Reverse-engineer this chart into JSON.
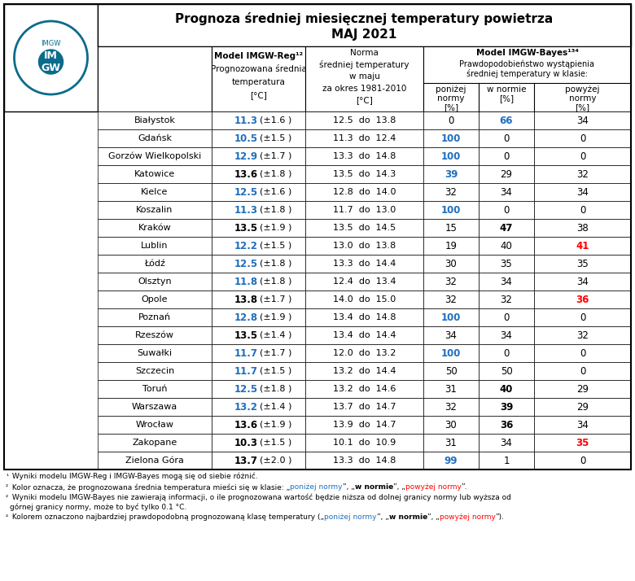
{
  "title_line1": "Prognoza średniej miesięcznej temperatury powietrza",
  "title_line2": "MAJ 2021",
  "col_headers": {
    "col1": [
      "Model IMGW-Reg¹²",
      "Prognozowana średnia",
      "temperatura",
      "[°C]"
    ],
    "col2": [
      "Norma",
      "średniej temperatury",
      "w maju",
      "za okres 1981-2010",
      "[°C]"
    ],
    "col3_main": "Model IMGW-Bayes¹³⁴",
    "col3_sub": "Prawdopodobieństwo wystąpienia średniej temperatury w klasie:",
    "col3a": [
      "poniżej",
      "normy",
      "[%]"
    ],
    "col3b": [
      "w normie",
      "[%]"
    ],
    "col3c": [
      "powyżej",
      "normy",
      "[%]"
    ]
  },
  "rows": [
    {
      "city": "Białystok",
      "temp": "11.3",
      "pm": "±1.6",
      "norm_low": "12.5",
      "norm_high": "13.8",
      "p_below": "0",
      "p_norm": "66",
      "p_above": "34",
      "temp_color": "blue",
      "below_color": "black",
      "norm_color": "blue_bold",
      "above_color": "black"
    },
    {
      "city": "Gdańsk",
      "temp": "10.5",
      "pm": "±1.5",
      "norm_low": "11.3",
      "norm_high": "12.4",
      "p_below": "100",
      "p_norm": "0",
      "p_above": "0",
      "temp_color": "blue",
      "below_color": "blue",
      "norm_color": "black",
      "above_color": "black"
    },
    {
      "city": "Gorzów Wielkopolski",
      "temp": "12.9",
      "pm": "±1.7",
      "norm_low": "13.3",
      "norm_high": "14.8",
      "p_below": "100",
      "p_norm": "0",
      "p_above": "0",
      "temp_color": "blue",
      "below_color": "blue",
      "norm_color": "black",
      "above_color": "black"
    },
    {
      "city": "Katowice",
      "temp": "13.6",
      "pm": "±1.8",
      "norm_low": "13.5",
      "norm_high": "14.3",
      "p_below": "39",
      "p_norm": "29",
      "p_above": "32",
      "temp_color": "black",
      "below_color": "blue",
      "norm_color": "black",
      "above_color": "black"
    },
    {
      "city": "Kielce",
      "temp": "12.5",
      "pm": "±1.6",
      "norm_low": "12.8",
      "norm_high": "14.0",
      "p_below": "32",
      "p_norm": "34",
      "p_above": "34",
      "temp_color": "blue",
      "below_color": "black",
      "norm_color": "black",
      "above_color": "black"
    },
    {
      "city": "Koszalin",
      "temp": "11.3",
      "pm": "±1.8",
      "norm_low": "11.7",
      "norm_high": "13.0",
      "p_below": "100",
      "p_norm": "0",
      "p_above": "0",
      "temp_color": "blue",
      "below_color": "blue",
      "norm_color": "black",
      "above_color": "black"
    },
    {
      "city": "Kraków",
      "temp": "13.5",
      "pm": "±1.9",
      "norm_low": "13.5",
      "norm_high": "14.5",
      "p_below": "15",
      "p_norm": "47",
      "p_above": "38",
      "temp_color": "black",
      "below_color": "black",
      "norm_color": "black_bold",
      "above_color": "black"
    },
    {
      "city": "Lublin",
      "temp": "12.2",
      "pm": "±1.5",
      "norm_low": "13.0",
      "norm_high": "13.8",
      "p_below": "19",
      "p_norm": "40",
      "p_above": "41",
      "temp_color": "blue",
      "below_color": "black",
      "norm_color": "black",
      "above_color": "red"
    },
    {
      "city": "Łódź",
      "temp": "12.5",
      "pm": "±1.8",
      "norm_low": "13.3",
      "norm_high": "14.4",
      "p_below": "30",
      "p_norm": "35",
      "p_above": "35",
      "temp_color": "blue",
      "below_color": "black",
      "norm_color": "black",
      "above_color": "black"
    },
    {
      "city": "Olsztyn",
      "temp": "11.8",
      "pm": "±1.8",
      "norm_low": "12.4",
      "norm_high": "13.4",
      "p_below": "32",
      "p_norm": "34",
      "p_above": "34",
      "temp_color": "blue",
      "below_color": "black",
      "norm_color": "black",
      "above_color": "black"
    },
    {
      "city": "Opole",
      "temp": "13.8",
      "pm": "±1.7",
      "norm_low": "14.0",
      "norm_high": "15.0",
      "p_below": "32",
      "p_norm": "32",
      "p_above": "36",
      "temp_color": "black",
      "below_color": "black",
      "norm_color": "black",
      "above_color": "red"
    },
    {
      "city": "Poznań",
      "temp": "12.8",
      "pm": "±1.9",
      "norm_low": "13.4",
      "norm_high": "14.8",
      "p_below": "100",
      "p_norm": "0",
      "p_above": "0",
      "temp_color": "blue",
      "below_color": "blue",
      "norm_color": "black",
      "above_color": "black"
    },
    {
      "city": "Rzeszów",
      "temp": "13.5",
      "pm": "±1.4",
      "norm_low": "13.4",
      "norm_high": "14.4",
      "p_below": "34",
      "p_norm": "34",
      "p_above": "32",
      "temp_color": "black",
      "below_color": "black",
      "norm_color": "black",
      "above_color": "black"
    },
    {
      "city": "Suwałki",
      "temp": "11.7",
      "pm": "±1.7",
      "norm_low": "12.0",
      "norm_high": "13.2",
      "p_below": "100",
      "p_norm": "0",
      "p_above": "0",
      "temp_color": "blue",
      "below_color": "blue",
      "norm_color": "black",
      "above_color": "black"
    },
    {
      "city": "Szczecin",
      "temp": "11.7",
      "pm": "±1.5",
      "norm_low": "13.2",
      "norm_high": "14.4",
      "p_below": "50",
      "p_norm": "50",
      "p_above": "0",
      "temp_color": "blue",
      "below_color": "black",
      "norm_color": "black",
      "above_color": "black"
    },
    {
      "city": "Toruń",
      "temp": "12.5",
      "pm": "±1.8",
      "norm_low": "13.2",
      "norm_high": "14.6",
      "p_below": "31",
      "p_norm": "40",
      "p_above": "29",
      "temp_color": "blue",
      "below_color": "black",
      "norm_color": "black_bold",
      "above_color": "black"
    },
    {
      "city": "Warszawa",
      "temp": "13.2",
      "pm": "±1.4",
      "norm_low": "13.7",
      "norm_high": "14.7",
      "p_below": "32",
      "p_norm": "39",
      "p_above": "29",
      "temp_color": "blue",
      "below_color": "black",
      "norm_color": "black_bold",
      "above_color": "black"
    },
    {
      "city": "Wrocław",
      "temp": "13.6",
      "pm": "±1.9",
      "norm_low": "13.9",
      "norm_high": "14.7",
      "p_below": "30",
      "p_norm": "36",
      "p_above": "34",
      "temp_color": "black",
      "below_color": "black",
      "norm_color": "black_bold",
      "above_color": "black"
    },
    {
      "city": "Zakopane",
      "temp": "10.3",
      "pm": "±1.5",
      "norm_low": "10.1",
      "norm_high": "10.9",
      "p_below": "31",
      "p_norm": "34",
      "p_above": "35",
      "temp_color": "black",
      "below_color": "black",
      "norm_color": "black",
      "above_color": "red"
    },
    {
      "city": "Zielona Góra",
      "temp": "13.7",
      "pm": "±2.0",
      "norm_low": "13.3",
      "norm_high": "14.8",
      "p_below": "99",
      "p_norm": "1",
      "p_above": "0",
      "temp_color": "black",
      "below_color": "blue",
      "norm_color": "black",
      "above_color": "black"
    }
  ],
  "footnotes": [
    {
      "superscript": "1",
      "text": " Wyniki modelu IMGW-Reg i IMGW-Bayes mogą się od siebie różnić."
    },
    {
      "superscript": "2",
      "text_parts": [
        {
          "text": " Kolor oznacza, że prognozowana średnia temperatura mieści się w klasie: „",
          "color": "black"
        },
        {
          "text": "poniżej normy",
          "color": "blue"
        },
        {
          "text": "”, „",
          "color": "black"
        },
        {
          "text": "w normie",
          "color": "black",
          "bold": true
        },
        {
          "text": "”, „",
          "color": "black"
        },
        {
          "text": "powyżej normy",
          "color": "red"
        },
        {
          "text": "”.",
          "color": "black"
        }
      ]
    },
    {
      "superscript": "3",
      "text_parts": [
        {
          "text": " Wyniki modelu IMGW-Bayes nie zawierają informacji, o ile prognozowana wartość będzie niższa od dolnej granicy normy lub wyższa od górnej granicy normy, może to być tylko 0.1 °C.",
          "color": "black"
        }
      ]
    },
    {
      "superscript": "4",
      "text_parts": [
        {
          "text": " Kolorem oznaczono najbardziej prawdopodobną prognozowaną klasę temperatury („",
          "color": "black"
        },
        {
          "text": "poniżej normy",
          "color": "blue"
        },
        {
          "text": "”, „",
          "color": "black"
        },
        {
          "text": "w normie",
          "color": "black",
          "bold": true
        },
        {
          "text": "”, „",
          "color": "black"
        },
        {
          "text": "powyżej normy",
          "color": "red"
        },
        {
          "text": "”).",
          "color": "black"
        }
      ]
    }
  ],
  "color_map": {
    "blue": "#1F6FBF",
    "red": "#FF0000",
    "black": "#000000",
    "header_bg": "#FFFFFF",
    "row_bg_even": "#FFFFFF",
    "row_bg_odd": "#FFFFFF",
    "border": "#000000"
  }
}
